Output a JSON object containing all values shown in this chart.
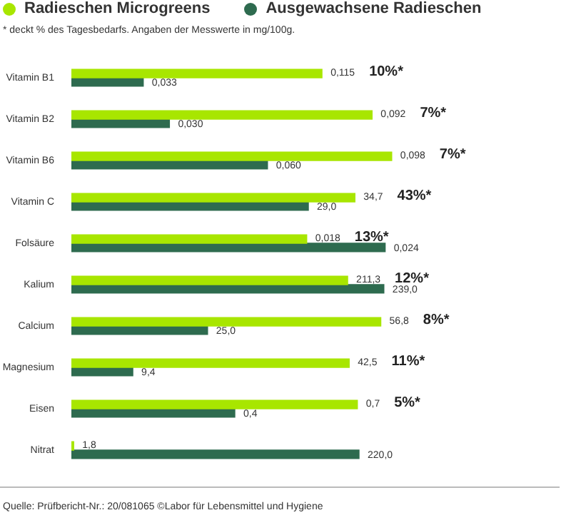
{
  "chart_data": [
    {
      "type": "bar",
      "orientation": "horizontal",
      "subtitle": "* deckt % des Tagesbedarfs. Angaben der Messwerte in mg/100g.",
      "legend": "top",
      "grid": false,
      "tick_labels": "y",
      "categories": [
        "Vitamin B1"
      ],
      "series": [
        {
          "name": "Radieschen Microgreens",
          "color": "#a8e600",
          "values": [
            0.115
          ],
          "value_labels": [
            "0,115"
          ]
        },
        {
          "name": "Ausgewachsene Radieschen",
          "color": "#2e6b4f",
          "values": [
            0.033
          ],
          "value_labels": [
            "0,033"
          ]
        }
      ],
      "annotations": [
        "10%*"
      ]
    },
    {
      "type": "bar",
      "orientation": "horizontal",
      "grid": false,
      "tick_labels": "y",
      "categories": [
        "Vitamin B2"
      ],
      "series": [
        {
          "color": "#a8e600",
          "values": [
            0.092
          ],
          "value_labels": [
            "0,092"
          ]
        },
        {
          "color": "#2e6b4f",
          "values": [
            0.03
          ],
          "value_labels": [
            "0,030"
          ]
        }
      ],
      "annotations": [
        "7%*"
      ]
    },
    {
      "type": "bar",
      "orientation": "horizontal",
      "grid": false,
      "tick_labels": "y",
      "categories": [
        "Vitamin B6"
      ],
      "series": [
        {
          "color": "#a8e600",
          "values": [
            0.098
          ],
          "value_labels": [
            "0,098"
          ]
        },
        {
          "color": "#2e6b4f",
          "values": [
            0.06
          ],
          "value_labels": [
            "0,060"
          ]
        }
      ],
      "annotations": [
        "7%*"
      ]
    },
    {
      "type": "bar",
      "orientation": "horizontal",
      "grid": false,
      "tick_labels": "y",
      "categories": [
        "Vitamin C"
      ],
      "series": [
        {
          "color": "#a8e600",
          "values": [
            34.7
          ],
          "value_labels": [
            "34,7"
          ]
        },
        {
          "color": "#2e6b4f",
          "values": [
            29.0
          ],
          "value_labels": [
            "29,0"
          ]
        }
      ],
      "annotations": [
        "43%*"
      ]
    },
    {
      "type": "bar",
      "orientation": "horizontal",
      "grid": false,
      "tick_labels": "y",
      "categories": [
        "Folsäure"
      ],
      "series": [
        {
          "color": "#a8e600",
          "values": [
            0.018
          ],
          "value_labels": [
            "0,018"
          ]
        },
        {
          "color": "#2e6b4f",
          "values": [
            0.024
          ],
          "value_labels": [
            "0,024"
          ]
        }
      ],
      "annotations": [
        "13%*"
      ]
    },
    {
      "type": "bar",
      "orientation": "horizontal",
      "grid": false,
      "tick_labels": "y",
      "categories": [
        "Kalium"
      ],
      "series": [
        {
          "color": "#a8e600",
          "values": [
            211.3
          ],
          "value_labels": [
            "211,3"
          ]
        },
        {
          "color": "#2e6b4f",
          "values": [
            239.0
          ],
          "value_labels": [
            "239,0"
          ]
        }
      ],
      "annotations": [
        "12%*"
      ]
    },
    {
      "type": "bar",
      "orientation": "horizontal",
      "grid": false,
      "tick_labels": "y",
      "categories": [
        "Calcium"
      ],
      "series": [
        {
          "color": "#a8e600",
          "values": [
            56.8
          ],
          "value_labels": [
            "56,8"
          ]
        },
        {
          "color": "#2e6b4f",
          "values": [
            25.0
          ],
          "value_labels": [
            "25,0"
          ]
        }
      ],
      "annotations": [
        "8%*"
      ]
    },
    {
      "type": "bar",
      "orientation": "horizontal",
      "grid": false,
      "tick_labels": "y",
      "categories": [
        "Magnesium"
      ],
      "series": [
        {
          "color": "#a8e600",
          "values": [
            42.5
          ],
          "value_labels": [
            "42,5"
          ]
        },
        {
          "color": "#2e6b4f",
          "values": [
            9.4
          ],
          "value_labels": [
            "9,4"
          ]
        }
      ],
      "annotations": [
        "11%*"
      ]
    },
    {
      "type": "bar",
      "orientation": "horizontal",
      "grid": false,
      "tick_labels": "y",
      "categories": [
        "Eisen"
      ],
      "series": [
        {
          "color": "#a8e600",
          "values": [
            0.7
          ],
          "value_labels": [
            "0,7"
          ]
        },
        {
          "color": "#2e6b4f",
          "values": [
            0.4
          ],
          "value_labels": [
            "0,4"
          ]
        }
      ],
      "annotations": [
        "5%*"
      ]
    },
    {
      "type": "bar",
      "orientation": "horizontal",
      "grid": false,
      "tick_labels": "y",
      "categories": [
        "Nitrat"
      ],
      "series": [
        {
          "color": "#a8e600",
          "values": [
            1.8
          ],
          "value_labels": [
            "1,8"
          ]
        },
        {
          "color": "#2e6b4f",
          "values": [
            220.0
          ],
          "value_labels": [
            "220,0"
          ]
        }
      ],
      "annotations": [
        "Quelle: Prüfbericht-Nr.: 20/081065 ©Labor für Lebensmittel und Hygiene"
      ]
    }
  ]
}
